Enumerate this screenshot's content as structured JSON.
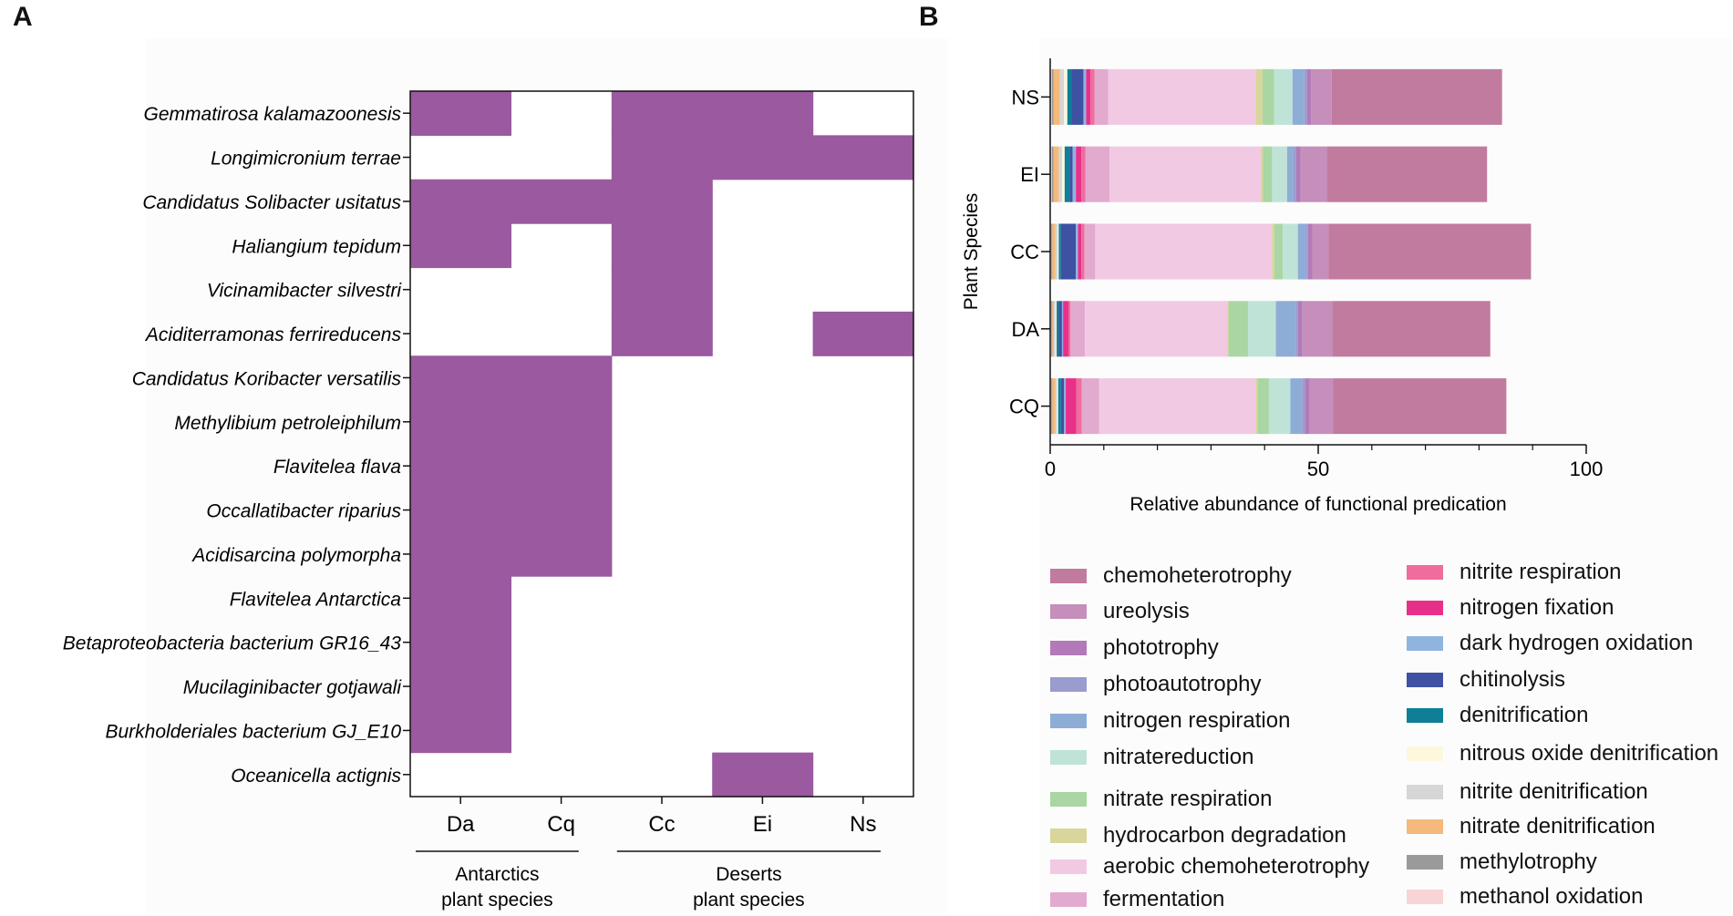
{
  "panels": {
    "A": "A",
    "B": "B"
  },
  "chart_data": [
    {
      "type": "heatmap",
      "presence_color": "#9b59a0",
      "rows": [
        "Gemmatirosa kalamazoonesis",
        "Longimicronium terrae",
        "Candidatus Solibacter usitatus",
        "Haliangium tepidum",
        "Vicinamibacter silvestri",
        "Aciditerramonas ferrireducens",
        "Candidatus Koribacter versatilis",
        "Methylibium petroleiphilum",
        "Flavitelea flava",
        "Occallatibacter riparius",
        "Acidisarcina polymorpha",
        "Flavitelea Antarctica",
        "Betaproteobacteria bacterium GR16_43",
        "Mucilaginibacter gotjawali",
        "Burkholderiales bacterium GJ_E10",
        "Oceanicella actignis"
      ],
      "columns": [
        "Da",
        "Cq",
        "Cc",
        "Ei",
        "Ns"
      ],
      "presence": [
        [
          1,
          0,
          1,
          1,
          0
        ],
        [
          0,
          0,
          1,
          1,
          1
        ],
        [
          1,
          1,
          1,
          0,
          0
        ],
        [
          1,
          0,
          1,
          0,
          0
        ],
        [
          0,
          0,
          1,
          0,
          0
        ],
        [
          0,
          0,
          1,
          0,
          1
        ],
        [
          1,
          1,
          0,
          0,
          0
        ],
        [
          1,
          1,
          0,
          0,
          0
        ],
        [
          1,
          1,
          0,
          0,
          0
        ],
        [
          1,
          1,
          0,
          0,
          0
        ],
        [
          1,
          1,
          0,
          0,
          0
        ],
        [
          1,
          0,
          0,
          0,
          0
        ],
        [
          1,
          0,
          0,
          0,
          0
        ],
        [
          1,
          0,
          0,
          0,
          0
        ],
        [
          1,
          0,
          0,
          0,
          0
        ],
        [
          0,
          0,
          0,
          1,
          0
        ]
      ],
      "groups": [
        {
          "line1": "Antarctics",
          "line2": "plant species",
          "columns": [
            "Da",
            "Cq"
          ]
        },
        {
          "line1": "Deserts",
          "line2": "plant species",
          "columns": [
            "Cc",
            "Ei",
            "Ns"
          ]
        }
      ]
    },
    {
      "type": "bar",
      "orientation": "horizontal",
      "stacked": true,
      "ylabel": "Plant Species",
      "xlabel": "Relative abundance of functional predication",
      "xlim": [
        0,
        100
      ],
      "xticks": [
        0,
        50,
        100
      ],
      "categories": [
        "NS",
        "EI",
        "CC",
        "DA",
        "CQ"
      ],
      "series": [
        {
          "name": "methanol oxidation",
          "color": "#f9d4d6",
          "values": [
            0.3,
            0.3,
            0.2,
            0.2,
            0.2
          ]
        },
        {
          "name": "methylotrophy",
          "color": "#9a9a9a",
          "values": [
            0.3,
            0.3,
            0.2,
            0.2,
            0.2
          ]
        },
        {
          "name": "nitrate denitrification",
          "color": "#f5b97c",
          "values": [
            1.2,
            1.0,
            0.6,
            0.3,
            0.6
          ]
        },
        {
          "name": "nitrite denitrification",
          "color": "#d6d6d6",
          "values": [
            0.8,
            0.6,
            0.4,
            0.3,
            0.3
          ]
        },
        {
          "name": "nitrous oxide denitrification",
          "color": "#fdf7dc",
          "values": [
            0.6,
            0.5,
            0.2,
            0.2,
            0.2
          ]
        },
        {
          "name": "denitrification",
          "color": "#0e7f96",
          "values": [
            0.8,
            0.9,
            0.4,
            0.4,
            0.5
          ]
        },
        {
          "name": "chitinolysis",
          "color": "#3f51a3",
          "values": [
            2.2,
            0.6,
            2.8,
            0.6,
            0.6
          ]
        },
        {
          "name": "dark hydrogen oxidation",
          "color": "#8fb4e0",
          "values": [
            0.5,
            0.6,
            0.4,
            0.2,
            0.3
          ]
        },
        {
          "name": "nitrogen fixation",
          "color": "#e8308a",
          "values": [
            0.8,
            1.0,
            0.6,
            1.0,
            2.0
          ]
        },
        {
          "name": "nitrite respiration",
          "color": "#ee6d9c",
          "values": [
            0.8,
            0.8,
            0.6,
            0.4,
            1.0
          ]
        },
        {
          "name": "fermentation",
          "color": "#e2aacf",
          "values": [
            2.5,
            4.5,
            2.0,
            2.7,
            3.2
          ]
        },
        {
          "name": "aerobic chemoheterotrophy",
          "color": "#f2c9e2",
          "values": [
            27.5,
            28.2,
            33.0,
            26.5,
            29.2
          ]
        },
        {
          "name": "hydrocarbon degradation",
          "color": "#d8d69a",
          "values": [
            1.3,
            0.4,
            0.4,
            0.3,
            0.4
          ]
        },
        {
          "name": "nitrate respiration",
          "color": "#a9d6a3",
          "values": [
            2.2,
            1.7,
            1.6,
            3.6,
            2.1
          ]
        },
        {
          "name": "nitratereduction",
          "color": "#c0e3d7",
          "values": [
            3.4,
            2.8,
            2.8,
            5.2,
            4.0
          ]
        },
        {
          "name": "nitrogen respiration",
          "color": "#8eadd6",
          "values": [
            2.2,
            1.2,
            1.6,
            3.8,
            2.2
          ]
        },
        {
          "name": "photoautotrophy",
          "color": "#9a9ccf",
          "values": [
            0.5,
            0.5,
            0.3,
            0.3,
            0.5
          ]
        },
        {
          "name": "phototrophy",
          "color": "#b27ab8",
          "values": [
            0.8,
            0.8,
            0.8,
            0.8,
            0.8
          ]
        },
        {
          "name": "ureolysis",
          "color": "#c58ebb",
          "values": [
            3.8,
            5.0,
            3.0,
            5.6,
            4.5
          ]
        },
        {
          "name": "chemoheterotrophy",
          "color": "#c17b9f",
          "values": [
            31.8,
            29.8,
            37.8,
            29.5,
            32.3
          ]
        }
      ],
      "legend": {
        "col1": [
          "chemoheterotrophy",
          "ureolysis",
          "phototrophy",
          "photoautotrophy",
          "nitrogen respiration",
          "nitratereduction",
          "nitrate respiration",
          "hydrocarbon degradation",
          "aerobic chemoheterotrophy",
          "fermentation"
        ],
        "col2": [
          "nitrite respiration",
          "nitrogen fixation",
          "dark hydrogen oxidation",
          "chitinolysis",
          "denitrification",
          "nitrous oxide denitrification",
          "nitrite denitrification",
          "nitrate denitrification",
          "methylotrophy",
          "methanol oxidation"
        ]
      }
    }
  ]
}
